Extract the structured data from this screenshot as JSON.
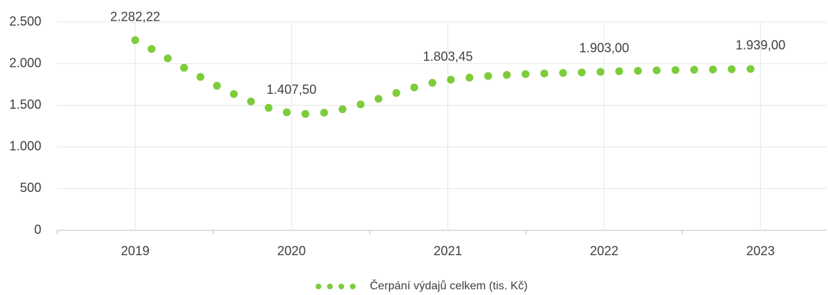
{
  "chart_data": {
    "type": "line",
    "categories": [
      "2019",
      "2020",
      "2021",
      "2022",
      "2023"
    ],
    "series": [
      {
        "name": "Čerpání výdajů celkem (tis. Kč)",
        "color": "#7dcc3a",
        "values": [
          2282.22,
          1407.5,
          1803.45,
          1903.0,
          1939.0
        ],
        "value_labels": [
          "2.282,22",
          "1.407,50",
          "1.803,45",
          "1.903,00",
          "1.939,00"
        ]
      }
    ],
    "ylim": [
      0,
      2500
    ],
    "yticks": [
      0,
      500,
      {
        "value": 1000,
        "label": "1.000"
      },
      {
        "value": 1500,
        "label": "1.500"
      },
      {
        "value": 2000,
        "label": "2.000"
      },
      {
        "value": 2500,
        "label": "2.500"
      }
    ],
    "grid": true,
    "legend": "bottom"
  }
}
